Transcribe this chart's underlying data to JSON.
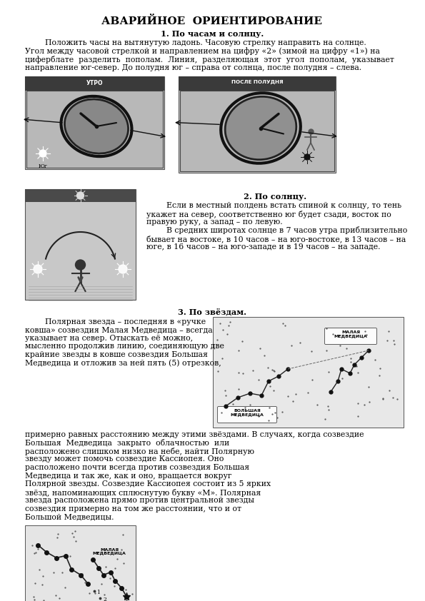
{
  "title": "АВАРИЙНОЕ  ОРИЕНТИРОВАНИЕ",
  "title_fontsize": 11,
  "body_fontsize": 7.8,
  "small_fontsize": 6.5,
  "background_color": "#ffffff",
  "text_color": "#000000",
  "section1_heading": "1. По часам и солнцу.",
  "section1_body_lines": [
    "        Положить часы на вытянутую ладонь. Часовую стрелку направить на солнце.",
    "Угол между часовой стрелкой и направлением на цифру «2» (зимой на цифру «1») на",
    "циферблате  разделить  пополам.  Линия,  разделяющая  этот  угол  пополам,  указывает",
    "направление юг-север. До полудня юг – справа от солнца, после полудня – слева."
  ],
  "section2_heading": "2. По солнцу.",
  "section2_body_left": [
    "        Если в местный полдень встать спиной к солнцу, то тень",
    "укажет на север, соответственно юг будет сзади, восток по",
    "правую руку, а запад – по левую.",
    "        В средних широтах солнце в 7 часов утра приблизительно",
    "бывает на востоке, в 10 часов – на юго-востоке, в 13 часов – на",
    "юге, в 16 часов – на юго-западе и в 19 часов – на западе."
  ],
  "section3_heading": "3. По звёздам.",
  "section3_col1_lines": [
    "        Полярная звезда – последняя в «ручке",
    "ковша» созвездия Малая Медведица – всегда",
    "указывает на север. Отыскать её можно,",
    "мысленно продолжив линию, соединяющую две",
    "крайние звезды в ковше созвездия Большая",
    "Медведица и отложив за ней пять (5) отрезков,"
  ],
  "section3_full_lines": [
    "примерно равных расстоянию между этими звёздами. В случаях, когда созвездие",
    "Большая  Медведица  закрыто  облачностью  или",
    "расположено слишком низко на небе, найти Полярную",
    "звезду может помочь созвездие Кассиопея. Оно",
    "расположено почти всегда против созвездия Большая",
    "Медведица и так же, как и оно, вращается вокруг",
    "Полярной звезды. Созвездие Кассиопея состоит из 5 ярких",
    "звёзд, напоминающих сплюснутую букву «М». Полярная",
    "звезда расположена прямо против центральной звезды",
    "созвездия примерно на том же расстоянии, что и от",
    "Большой Медведицы."
  ]
}
